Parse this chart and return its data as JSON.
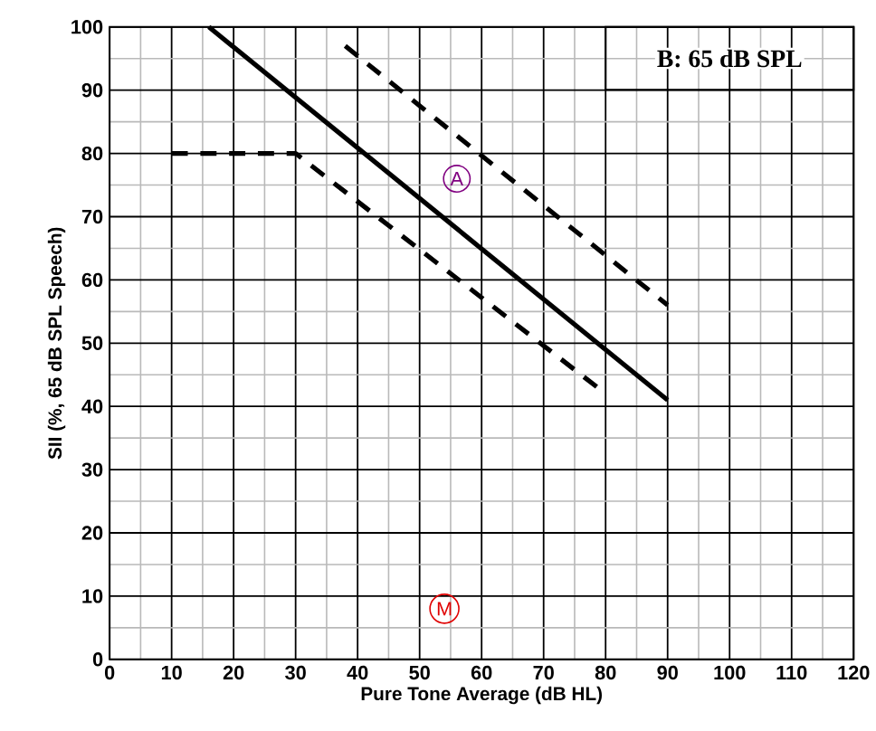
{
  "chart_data": {
    "type": "line",
    "title": "B: 65 dB SPL",
    "xlabel": "Pure Tone Average (dB HL)",
    "ylabel": "SII (%, 65 dB SPL Speech)",
    "series": [
      {
        "x": [
          16,
          90
        ],
        "values": [
          100,
          41
        ],
        "color": "#000000",
        "line_style": "solid"
      },
      {
        "x": [
          38,
          90
        ],
        "values": [
          97,
          56
        ],
        "color": "#000000",
        "line_style": "dashed"
      },
      {
        "x": [
          10,
          30,
          80
        ],
        "values": [
          80,
          80,
          42
        ],
        "color": "#000000",
        "line_style": "dashed"
      }
    ],
    "annotations": [
      {
        "text": "A",
        "x": 56,
        "y": 76
      },
      {
        "text": "M",
        "x": 54,
        "y": 8
      }
    ],
    "xlim": [
      0,
      120
    ],
    "xticks": [
      0,
      10,
      20,
      30,
      40,
      50,
      60,
      70,
      80,
      90,
      100,
      110,
      120
    ],
    "ylim": [
      0,
      100
    ],
    "yticks": [
      0,
      10,
      20,
      30,
      40,
      50,
      60,
      70,
      80,
      90,
      100
    ],
    "grid": true,
    "marker": "none"
  }
}
